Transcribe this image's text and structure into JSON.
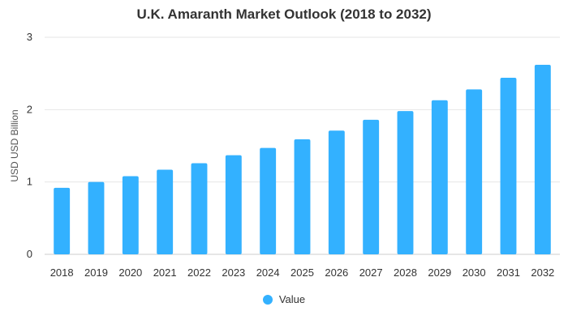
{
  "chart_data": {
    "type": "bar",
    "title": "U.K. Amaranth Market Outlook (2018 to 2032)",
    "xlabel": "",
    "ylabel": "USD USD Billion",
    "categories": [
      "2018",
      "2019",
      "2020",
      "2021",
      "2022",
      "2023",
      "2024",
      "2025",
      "2026",
      "2027",
      "2028",
      "2029",
      "2030",
      "2031",
      "2032"
    ],
    "series": [
      {
        "name": "Value",
        "values": [
          0.92,
          1.0,
          1.08,
          1.17,
          1.26,
          1.37,
          1.47,
          1.59,
          1.71,
          1.86,
          1.98,
          2.13,
          2.28,
          2.44,
          2.62
        ]
      }
    ],
    "ylim": [
      0,
      3
    ],
    "yticks": [
      "0",
      "1",
      "2",
      "3"
    ],
    "grid": true,
    "legend_position": "bottom",
    "bar_color": "#33b1ff"
  }
}
